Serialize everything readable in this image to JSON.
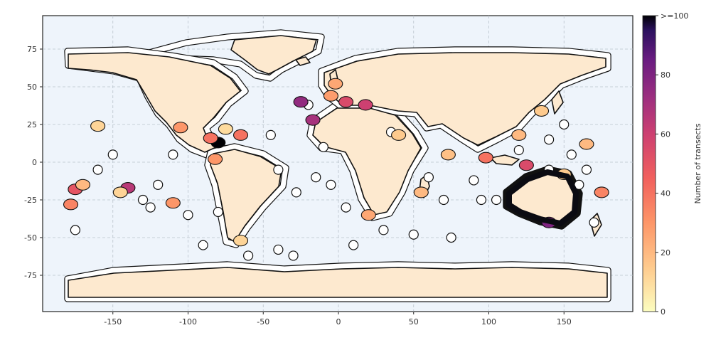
{
  "map": {
    "x_ticks": [
      "-150",
      "-100",
      "-50",
      "0",
      "50",
      "100",
      "150"
    ],
    "y_ticks": [
      "75",
      "50",
      "25",
      "0",
      "-25",
      "-50",
      "-75"
    ],
    "ocean_color": "#eef4fb",
    "land_color": "#fde9cf"
  },
  "colorbar": {
    "label": "Number of transects",
    "tick_labels": [
      ">=100",
      "80",
      "60",
      "40",
      "20",
      "0"
    ],
    "colormap": "magma_r",
    "range": [
      0,
      100
    ]
  },
  "regions": [
    {
      "lon": -80,
      "lat": 13,
      "value": 100
    },
    {
      "lon": -25,
      "lat": 40,
      "value": 75
    },
    {
      "lon": -17,
      "lat": 28,
      "value": 70
    },
    {
      "lon": 5,
      "lat": 40,
      "value": 55
    },
    {
      "lon": 18,
      "lat": 38,
      "value": 60
    },
    {
      "lon": -5,
      "lat": 44,
      "value": 28
    },
    {
      "lon": -2,
      "lat": 52,
      "value": 25
    },
    {
      "lon": -140,
      "lat": -17,
      "value": 65
    },
    {
      "lon": -175,
      "lat": -18,
      "value": 50
    },
    {
      "lon": -170,
      "lat": -15,
      "value": 20
    },
    {
      "lon": -145,
      "lat": -20,
      "value": 12
    },
    {
      "lon": -160,
      "lat": 24,
      "value": 12
    },
    {
      "lon": -178,
      "lat": -28,
      "value": 35
    },
    {
      "lon": -105,
      "lat": 23,
      "value": 30
    },
    {
      "lon": -85,
      "lat": 16,
      "value": 40
    },
    {
      "lon": -75,
      "lat": 22,
      "value": 10
    },
    {
      "lon": -82,
      "lat": 2,
      "value": 30
    },
    {
      "lon": -110,
      "lat": -27,
      "value": 30
    },
    {
      "lon": -65,
      "lat": -52,
      "value": 12
    },
    {
      "lon": 125,
      "lat": -2,
      "value": 55
    },
    {
      "lon": 98,
      "lat": 3,
      "value": 40
    },
    {
      "lon": 120,
      "lat": 18,
      "value": 20
    },
    {
      "lon": 135,
      "lat": 34,
      "value": 15
    },
    {
      "lon": 165,
      "lat": 12,
      "value": 20
    },
    {
      "lon": 150,
      "lat": -8,
      "value": 15
    },
    {
      "lon": 175,
      "lat": -20,
      "value": 35
    },
    {
      "lon": 140,
      "lat": -40,
      "value": 80
    },
    {
      "lon": 73,
      "lat": 5,
      "value": 18
    },
    {
      "lon": 55,
      "lat": -20,
      "value": 20
    },
    {
      "lon": 40,
      "lat": 18,
      "value": 15
    },
    {
      "lon": -65,
      "lat": 18,
      "value": 40
    },
    {
      "lon": 20,
      "lat": -35,
      "value": 25
    }
  ]
}
